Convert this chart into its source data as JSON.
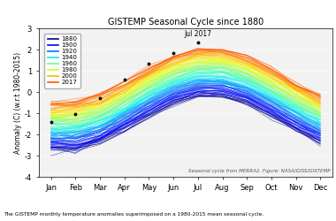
{
  "title": "GISTEMP Seasonal Cycle since 1880",
  "ylabel": "Anomaly (C) (w.r.t 1980-2015)",
  "subtitle": "Seasonal cycle from MERRA2. Figure: NASA/GISS/GISTEMP",
  "annotation": "Jul 2017",
  "months": [
    "Jan",
    "Feb",
    "Mar",
    "Apr",
    "May",
    "Jun",
    "Jul",
    "Aug",
    "Sep",
    "Oct",
    "Nov",
    "Dec"
  ],
  "year_start": 1880,
  "year_end": 2017,
  "legend_years": [
    1880,
    1900,
    1920,
    1940,
    1960,
    1980,
    2000,
    2017
  ],
  "ylim": [
    -4,
    3
  ],
  "yticks": [
    -4,
    -3,
    -2,
    -1,
    0,
    1,
    2,
    3
  ],
  "background_color": "#f2f2f2",
  "caption": "The GISTEMP monthly temperature anomalies superimposed on a 1980-2015 mean seasonal cycle.",
  "jul2017_value": 2.35,
  "dot_months": [
    0,
    1,
    2,
    3,
    4,
    5,
    6
  ],
  "dot_values_2017": [
    -1.4,
    -1.05,
    -0.3,
    0.6,
    1.35,
    1.85,
    2.35
  ]
}
